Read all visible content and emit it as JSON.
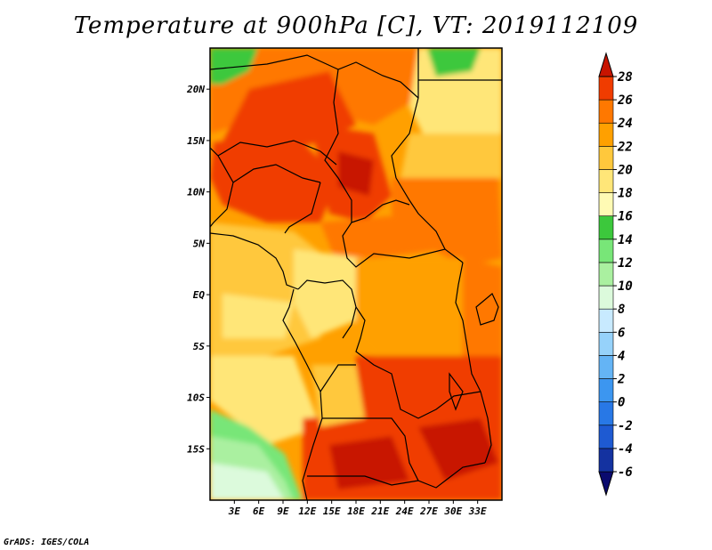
{
  "title": "Temperature at 900hPa [C], VT: 2019112109",
  "credit": "GrADS: IGES/COLA",
  "map": {
    "lon_range": [
      0,
      36
    ],
    "lat_range": [
      -20,
      24
    ],
    "x_ticks": [
      {
        "lon": 3,
        "label": "3E"
      },
      {
        "lon": 6,
        "label": "6E"
      },
      {
        "lon": 9,
        "label": "9E"
      },
      {
        "lon": 12,
        "label": "12E"
      },
      {
        "lon": 15,
        "label": "15E"
      },
      {
        "lon": 18,
        "label": "18E"
      },
      {
        "lon": 21,
        "label": "21E"
      },
      {
        "lon": 24,
        "label": "24E"
      },
      {
        "lon": 27,
        "label": "27E"
      },
      {
        "lon": 30,
        "label": "30E"
      },
      {
        "lon": 33,
        "label": "33E"
      }
    ],
    "y_ticks": [
      {
        "lat": 20,
        "label": "20N"
      },
      {
        "lat": 15,
        "label": "15N"
      },
      {
        "lat": 10,
        "label": "10N"
      },
      {
        "lat": 5,
        "label": "5N"
      },
      {
        "lat": 0,
        "label": "EQ"
      },
      {
        "lat": -5,
        "label": "5S"
      },
      {
        "lat": -10,
        "label": "10S"
      },
      {
        "lat": -15,
        "label": "15S"
      }
    ]
  },
  "colorbar": {
    "levels": [
      "-6",
      "-4",
      "-2",
      "0",
      "2",
      "4",
      "6",
      "8",
      "10",
      "12",
      "14",
      "16",
      "18",
      "20",
      "22",
      "24",
      "26",
      "28"
    ],
    "colors": [
      "#0a0a6e",
      "#1432a0",
      "#1e5ad2",
      "#2878e6",
      "#3c96f0",
      "#64b4f5",
      "#96d2fa",
      "#c8eaff",
      "#dcfadc",
      "#aaf0a0",
      "#78e678",
      "#3cc83c",
      "#fffab4",
      "#ffe678",
      "#ffc83c",
      "#ffa000",
      "#ff7800",
      "#f03c00",
      "#c81400"
    ]
  }
}
